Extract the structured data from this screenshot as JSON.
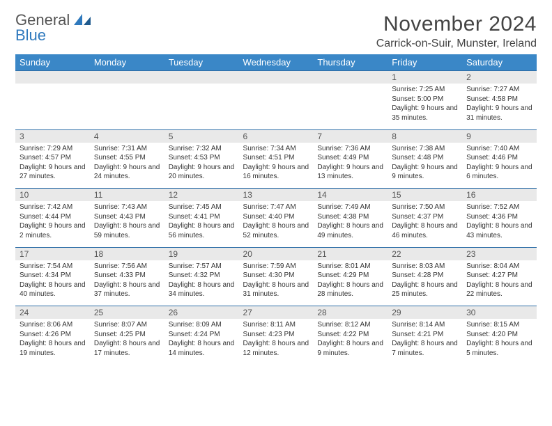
{
  "logo": {
    "line1": "General",
    "line2": "Blue"
  },
  "title": "November 2024",
  "location": "Carrick-on-Suir, Munster, Ireland",
  "colors": {
    "header_bg": "#3a87c7",
    "header_text": "#ffffff",
    "numrow_bg": "#e9e9e9",
    "numrow_border": "#2f6fa8",
    "body_text": "#333333",
    "logo_blue": "#2f79bd"
  },
  "weekdays": [
    "Sunday",
    "Monday",
    "Tuesday",
    "Wednesday",
    "Thursday",
    "Friday",
    "Saturday"
  ],
  "weeks": [
    [
      {
        "n": "",
        "sr": "",
        "ss": "",
        "dl": ""
      },
      {
        "n": "",
        "sr": "",
        "ss": "",
        "dl": ""
      },
      {
        "n": "",
        "sr": "",
        "ss": "",
        "dl": ""
      },
      {
        "n": "",
        "sr": "",
        "ss": "",
        "dl": ""
      },
      {
        "n": "",
        "sr": "",
        "ss": "",
        "dl": ""
      },
      {
        "n": "1",
        "sr": "Sunrise: 7:25 AM",
        "ss": "Sunset: 5:00 PM",
        "dl": "Daylight: 9 hours and 35 minutes."
      },
      {
        "n": "2",
        "sr": "Sunrise: 7:27 AM",
        "ss": "Sunset: 4:58 PM",
        "dl": "Daylight: 9 hours and 31 minutes."
      }
    ],
    [
      {
        "n": "3",
        "sr": "Sunrise: 7:29 AM",
        "ss": "Sunset: 4:57 PM",
        "dl": "Daylight: 9 hours and 27 minutes."
      },
      {
        "n": "4",
        "sr": "Sunrise: 7:31 AM",
        "ss": "Sunset: 4:55 PM",
        "dl": "Daylight: 9 hours and 24 minutes."
      },
      {
        "n": "5",
        "sr": "Sunrise: 7:32 AM",
        "ss": "Sunset: 4:53 PM",
        "dl": "Daylight: 9 hours and 20 minutes."
      },
      {
        "n": "6",
        "sr": "Sunrise: 7:34 AM",
        "ss": "Sunset: 4:51 PM",
        "dl": "Daylight: 9 hours and 16 minutes."
      },
      {
        "n": "7",
        "sr": "Sunrise: 7:36 AM",
        "ss": "Sunset: 4:49 PM",
        "dl": "Daylight: 9 hours and 13 minutes."
      },
      {
        "n": "8",
        "sr": "Sunrise: 7:38 AM",
        "ss": "Sunset: 4:48 PM",
        "dl": "Daylight: 9 hours and 9 minutes."
      },
      {
        "n": "9",
        "sr": "Sunrise: 7:40 AM",
        "ss": "Sunset: 4:46 PM",
        "dl": "Daylight: 9 hours and 6 minutes."
      }
    ],
    [
      {
        "n": "10",
        "sr": "Sunrise: 7:42 AM",
        "ss": "Sunset: 4:44 PM",
        "dl": "Daylight: 9 hours and 2 minutes."
      },
      {
        "n": "11",
        "sr": "Sunrise: 7:43 AM",
        "ss": "Sunset: 4:43 PM",
        "dl": "Daylight: 8 hours and 59 minutes."
      },
      {
        "n": "12",
        "sr": "Sunrise: 7:45 AM",
        "ss": "Sunset: 4:41 PM",
        "dl": "Daylight: 8 hours and 56 minutes."
      },
      {
        "n": "13",
        "sr": "Sunrise: 7:47 AM",
        "ss": "Sunset: 4:40 PM",
        "dl": "Daylight: 8 hours and 52 minutes."
      },
      {
        "n": "14",
        "sr": "Sunrise: 7:49 AM",
        "ss": "Sunset: 4:38 PM",
        "dl": "Daylight: 8 hours and 49 minutes."
      },
      {
        "n": "15",
        "sr": "Sunrise: 7:50 AM",
        "ss": "Sunset: 4:37 PM",
        "dl": "Daylight: 8 hours and 46 minutes."
      },
      {
        "n": "16",
        "sr": "Sunrise: 7:52 AM",
        "ss": "Sunset: 4:36 PM",
        "dl": "Daylight: 8 hours and 43 minutes."
      }
    ],
    [
      {
        "n": "17",
        "sr": "Sunrise: 7:54 AM",
        "ss": "Sunset: 4:34 PM",
        "dl": "Daylight: 8 hours and 40 minutes."
      },
      {
        "n": "18",
        "sr": "Sunrise: 7:56 AM",
        "ss": "Sunset: 4:33 PM",
        "dl": "Daylight: 8 hours and 37 minutes."
      },
      {
        "n": "19",
        "sr": "Sunrise: 7:57 AM",
        "ss": "Sunset: 4:32 PM",
        "dl": "Daylight: 8 hours and 34 minutes."
      },
      {
        "n": "20",
        "sr": "Sunrise: 7:59 AM",
        "ss": "Sunset: 4:30 PM",
        "dl": "Daylight: 8 hours and 31 minutes."
      },
      {
        "n": "21",
        "sr": "Sunrise: 8:01 AM",
        "ss": "Sunset: 4:29 PM",
        "dl": "Daylight: 8 hours and 28 minutes."
      },
      {
        "n": "22",
        "sr": "Sunrise: 8:03 AM",
        "ss": "Sunset: 4:28 PM",
        "dl": "Daylight: 8 hours and 25 minutes."
      },
      {
        "n": "23",
        "sr": "Sunrise: 8:04 AM",
        "ss": "Sunset: 4:27 PM",
        "dl": "Daylight: 8 hours and 22 minutes."
      }
    ],
    [
      {
        "n": "24",
        "sr": "Sunrise: 8:06 AM",
        "ss": "Sunset: 4:26 PM",
        "dl": "Daylight: 8 hours and 19 minutes."
      },
      {
        "n": "25",
        "sr": "Sunrise: 8:07 AM",
        "ss": "Sunset: 4:25 PM",
        "dl": "Daylight: 8 hours and 17 minutes."
      },
      {
        "n": "26",
        "sr": "Sunrise: 8:09 AM",
        "ss": "Sunset: 4:24 PM",
        "dl": "Daylight: 8 hours and 14 minutes."
      },
      {
        "n": "27",
        "sr": "Sunrise: 8:11 AM",
        "ss": "Sunset: 4:23 PM",
        "dl": "Daylight: 8 hours and 12 minutes."
      },
      {
        "n": "28",
        "sr": "Sunrise: 8:12 AM",
        "ss": "Sunset: 4:22 PM",
        "dl": "Daylight: 8 hours and 9 minutes."
      },
      {
        "n": "29",
        "sr": "Sunrise: 8:14 AM",
        "ss": "Sunset: 4:21 PM",
        "dl": "Daylight: 8 hours and 7 minutes."
      },
      {
        "n": "30",
        "sr": "Sunrise: 8:15 AM",
        "ss": "Sunset: 4:20 PM",
        "dl": "Daylight: 8 hours and 5 minutes."
      }
    ]
  ]
}
